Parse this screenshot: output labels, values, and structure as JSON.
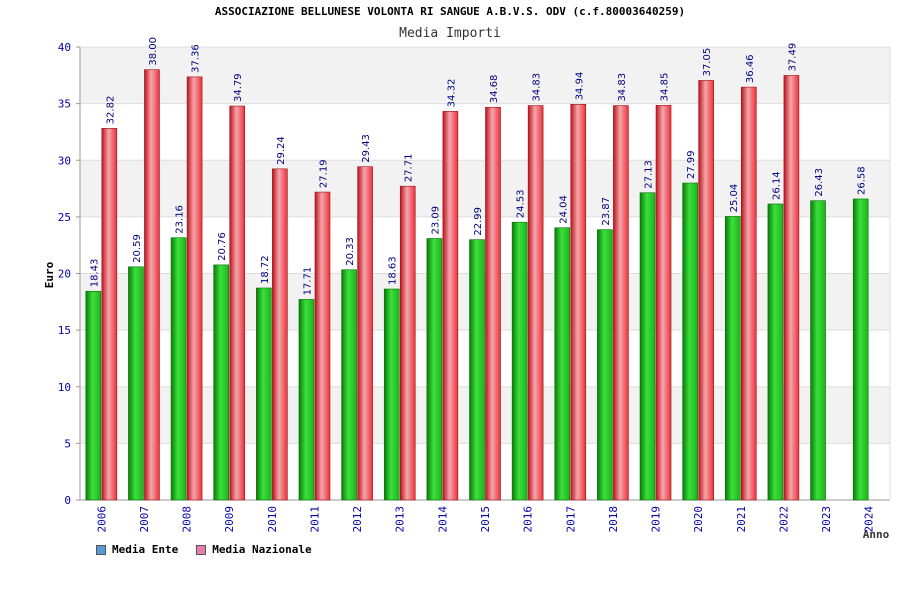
{
  "header": {
    "title": "ASSOCIAZIONE BELLUNESE VOLONTA RI SANGUE A.B.V.S. ODV (c.f.80003640259)",
    "subtitle": "Media Importi"
  },
  "legend": {
    "items": [
      {
        "label": "Media Ente",
        "color": "#5b9bd5"
      },
      {
        "label": "Media Nazionale",
        "color": "#e37fb0"
      }
    ]
  },
  "colors": {
    "ente_bar": "#1db31d",
    "nazionale_bar": "#e8323c",
    "axis_text": "#0000aa",
    "band": "#f2f2f2"
  },
  "chart_data": {
    "type": "bar",
    "title": "ASSOCIAZIONE BELLUNESE VOLONTA RI SANGUE A.B.V.S. ODV (c.f.80003640259)",
    "subtitle": "Media Importi",
    "xlabel": "Anno",
    "ylabel": "Euro",
    "ylim": [
      0,
      40
    ],
    "yticks": [
      0,
      5,
      10,
      15,
      20,
      25,
      30,
      35,
      40
    ],
    "categories": [
      "2006",
      "2007",
      "2008",
      "2009",
      "2010",
      "2011",
      "2012",
      "2013",
      "2014",
      "2015",
      "2016",
      "2017",
      "2018",
      "2019",
      "2020",
      "2021",
      "2022",
      "2023",
      "2024"
    ],
    "series": [
      {
        "name": "Media Ente",
        "values": [
          18.43,
          20.59,
          23.16,
          20.76,
          18.72,
          17.71,
          20.33,
          18.63,
          23.09,
          22.99,
          24.53,
          24.04,
          23.87,
          27.13,
          27.99,
          25.04,
          26.14,
          26.43,
          26.58
        ]
      },
      {
        "name": "Media Nazionale",
        "values": [
          32.82,
          38.0,
          37.36,
          34.79,
          29.24,
          27.19,
          29.43,
          27.71,
          34.32,
          34.68,
          34.83,
          34.94,
          34.83,
          34.85,
          37.05,
          36.46,
          37.49,
          null,
          null
        ]
      }
    ],
    "labels": {
      "ente": [
        "18.43",
        "20.59",
        "23.16",
        "20.76",
        "18.72",
        "17.71",
        "20.33",
        "18.63",
        "23.09",
        "22.99",
        "24.53",
        "24.04",
        "23.87",
        "27.13",
        "27.99",
        "25.04",
        "26.14",
        "26.43",
        "26.58"
      ],
      "nazionale": [
        "32.82",
        "38.00",
        "37.36",
        "34.79",
        "29.24",
        "27.19",
        "29.43",
        "27.71",
        "34.32",
        "34.68",
        "34.83",
        "34.94",
        "34.83",
        "34.85",
        "37.05",
        "36.46",
        "37.49",
        "",
        ""
      ]
    },
    "grid": true,
    "legend_position": "bottom-left"
  }
}
